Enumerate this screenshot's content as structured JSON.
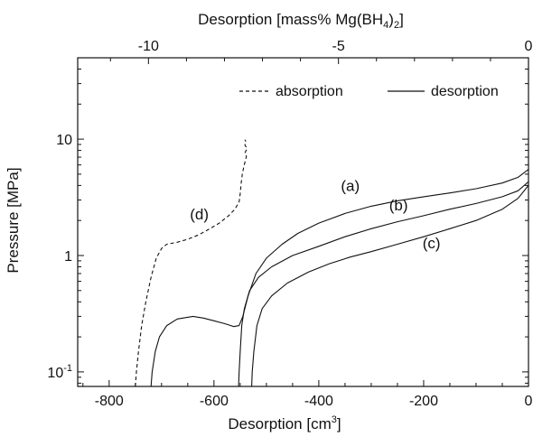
{
  "chart_data": {
    "type": "line",
    "title": "",
    "xlabel": "Desorption [cm3]",
    "xlabel_main": "Desorption [cm",
    "xlabel_sup": "3",
    "xlabel_end": "]",
    "ylabel": "Pressure [MPa]",
    "top_xlabel": "Desorption [mass% Mg(BH4)2]",
    "top_xlabel_main": "Desorption [mass% Mg(BH",
    "top_xlabel_sub1": "4",
    "top_xlabel_mid": ")",
    "top_xlabel_sub2": "2",
    "top_xlabel_end": "]",
    "xlim": [
      -860,
      0
    ],
    "ylim": [
      0.075,
      50
    ],
    "yscale": "log",
    "grid": false,
    "x_ticks": [
      -800,
      -600,
      -400,
      -200,
      0
    ],
    "x_tick_labels": [
      "-800",
      "-600",
      "-400",
      "-200",
      "0"
    ],
    "top_x_ticks_cm3": [
      -725,
      -362.5,
      0
    ],
    "top_x_tick_labels": [
      "-10",
      "-5",
      "0"
    ],
    "y_tick_labels": [
      {
        "base": "10",
        "exp": "-1",
        "value": 0.1
      },
      {
        "base": "1",
        "exp": "",
        "value": 1
      },
      {
        "base": "10",
        "exp": "",
        "value": 10
      }
    ],
    "legend": {
      "position": "top-right",
      "entries": [
        {
          "label": "absorption",
          "style": "dashed"
        },
        {
          "label": "desorption",
          "style": "solid"
        }
      ]
    },
    "series": [
      {
        "label": "(d)",
        "style": "dashed",
        "points": [
          [
            -750,
            0.075
          ],
          [
            -748,
            0.1
          ],
          [
            -744,
            0.15
          ],
          [
            -738,
            0.25
          ],
          [
            -730,
            0.4
          ],
          [
            -720,
            0.65
          ],
          [
            -710,
            0.95
          ],
          [
            -700,
            1.15
          ],
          [
            -690,
            1.25
          ],
          [
            -670,
            1.3
          ],
          [
            -650,
            1.38
          ],
          [
            -630,
            1.5
          ],
          [
            -610,
            1.68
          ],
          [
            -590,
            1.9
          ],
          [
            -572,
            2.2
          ],
          [
            -560,
            2.5
          ],
          [
            -552,
            2.9
          ],
          [
            -550,
            3.4
          ],
          [
            -548,
            4.2
          ],
          [
            -546,
            5.0
          ],
          [
            -543,
            5.8
          ],
          [
            -540,
            6.6
          ],
          [
            -538,
            7.1
          ],
          [
            -541,
            7.6
          ],
          [
            -537,
            8.3
          ],
          [
            -541,
            8.9
          ],
          [
            -539,
            9.5
          ],
          [
            -541,
            9.9
          ]
        ]
      },
      {
        "label": "(a)",
        "style": "solid",
        "points": [
          [
            -720,
            0.075
          ],
          [
            -718,
            0.1
          ],
          [
            -712,
            0.15
          ],
          [
            -704,
            0.2
          ],
          [
            -690,
            0.25
          ],
          [
            -670,
            0.285
          ],
          [
            -640,
            0.3
          ],
          [
            -620,
            0.29
          ],
          [
            -600,
            0.275
          ],
          [
            -580,
            0.26
          ],
          [
            -562,
            0.245
          ],
          [
            -552,
            0.25
          ],
          [
            -545,
            0.3
          ],
          [
            -535,
            0.45
          ],
          [
            -520,
            0.7
          ],
          [
            -500,
            0.95
          ],
          [
            -470,
            1.25
          ],
          [
            -440,
            1.55
          ],
          [
            -400,
            1.9
          ],
          [
            -350,
            2.3
          ],
          [
            -300,
            2.65
          ],
          [
            -250,
            2.95
          ],
          [
            -200,
            3.2
          ],
          [
            -150,
            3.45
          ],
          [
            -100,
            3.75
          ],
          [
            -50,
            4.2
          ],
          [
            -20,
            4.7
          ],
          [
            0,
            5.5
          ]
        ]
      },
      {
        "label": "(b)",
        "style": "solid",
        "points": [
          [
            -553,
            0.075
          ],
          [
            -552,
            0.1
          ],
          [
            -550,
            0.15
          ],
          [
            -547,
            0.25
          ],
          [
            -542,
            0.35
          ],
          [
            -532,
            0.5
          ],
          [
            -515,
            0.65
          ],
          [
            -490,
            0.8
          ],
          [
            -450,
            1.0
          ],
          [
            -400,
            1.2
          ],
          [
            -350,
            1.45
          ],
          [
            -300,
            1.7
          ],
          [
            -250,
            1.95
          ],
          [
            -200,
            2.2
          ],
          [
            -150,
            2.5
          ],
          [
            -100,
            2.8
          ],
          [
            -50,
            3.2
          ],
          [
            -20,
            3.6
          ],
          [
            0,
            4.3
          ]
        ]
      },
      {
        "label": "(c)",
        "style": "solid",
        "points": [
          [
            -528,
            0.075
          ],
          [
            -527,
            0.1
          ],
          [
            -524,
            0.15
          ],
          [
            -518,
            0.25
          ],
          [
            -508,
            0.35
          ],
          [
            -490,
            0.45
          ],
          [
            -460,
            0.58
          ],
          [
            -420,
            0.72
          ],
          [
            -380,
            0.85
          ],
          [
            -340,
            0.97
          ],
          [
            -300,
            1.08
          ],
          [
            -250,
            1.25
          ],
          [
            -200,
            1.45
          ],
          [
            -150,
            1.7
          ],
          [
            -100,
            2.0
          ],
          [
            -50,
            2.5
          ],
          [
            -20,
            3.1
          ],
          [
            0,
            4.0
          ]
        ]
      }
    ],
    "annotations": [
      {
        "text": "(a)",
        "x": -340,
        "y": 3.6
      },
      {
        "text": "(b)",
        "x": -248,
        "y": 2.45
      },
      {
        "text": "(c)",
        "x": -185,
        "y": 1.15
      },
      {
        "text": "(d)",
        "x": -628,
        "y": 2.05
      }
    ]
  }
}
